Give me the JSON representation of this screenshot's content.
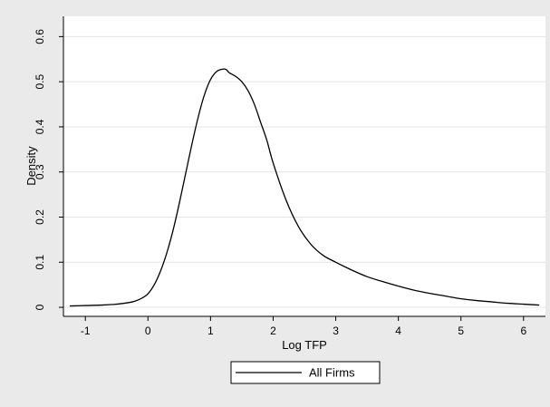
{
  "chart_data": {
    "type": "line",
    "xlabel": "Log TFP",
    "ylabel": "Density",
    "xlim": [
      -1.35,
      6.35
    ],
    "ylim": [
      -0.02,
      0.645
    ],
    "x_ticks": [
      {
        "value": -1,
        "label": "-1"
      },
      {
        "value": 0,
        "label": "0"
      },
      {
        "value": 1,
        "label": "1"
      },
      {
        "value": 2,
        "label": "2"
      },
      {
        "value": 3,
        "label": "3"
      },
      {
        "value": 4,
        "label": "4"
      },
      {
        "value": 5,
        "label": "5"
      },
      {
        "value": 6,
        "label": "6"
      }
    ],
    "y_ticks": [
      {
        "value": 0,
        "label": "0"
      },
      {
        "value": 0.1,
        "label": "0.1"
      },
      {
        "value": 0.2,
        "label": "0.2"
      },
      {
        "value": 0.3,
        "label": "0.3"
      },
      {
        "value": 0.4,
        "label": "0.4"
      },
      {
        "value": 0.5,
        "label": "0.5"
      },
      {
        "value": 0.6,
        "label": "0.6"
      }
    ],
    "grid": true,
    "legend_position": "bottom-center",
    "series": [
      {
        "name": "All Firms",
        "color": "#000000",
        "x": [
          -1.25,
          -1.0,
          -0.75,
          -0.5,
          -0.25,
          -0.1,
          0.0,
          0.1,
          0.2,
          0.3,
          0.4,
          0.5,
          0.6,
          0.7,
          0.8,
          0.9,
          1.0,
          1.1,
          1.2,
          1.25,
          1.3,
          1.4,
          1.5,
          1.6,
          1.7,
          1.8,
          1.9,
          2.0,
          2.2,
          2.4,
          2.6,
          2.8,
          3.0,
          3.25,
          3.5,
          3.75,
          4.0,
          4.25,
          4.5,
          4.75,
          5.0,
          5.25,
          5.5,
          5.75,
          6.0,
          6.25
        ],
        "y": [
          0.003,
          0.004,
          0.005,
          0.007,
          0.012,
          0.02,
          0.03,
          0.05,
          0.08,
          0.12,
          0.17,
          0.23,
          0.295,
          0.36,
          0.42,
          0.47,
          0.505,
          0.523,
          0.528,
          0.527,
          0.52,
          0.512,
          0.5,
          0.48,
          0.45,
          0.41,
          0.37,
          0.32,
          0.24,
          0.18,
          0.14,
          0.115,
          0.1,
          0.083,
          0.068,
          0.057,
          0.047,
          0.038,
          0.031,
          0.025,
          0.019,
          0.015,
          0.012,
          0.009,
          0.007,
          0.005
        ]
      }
    ]
  }
}
